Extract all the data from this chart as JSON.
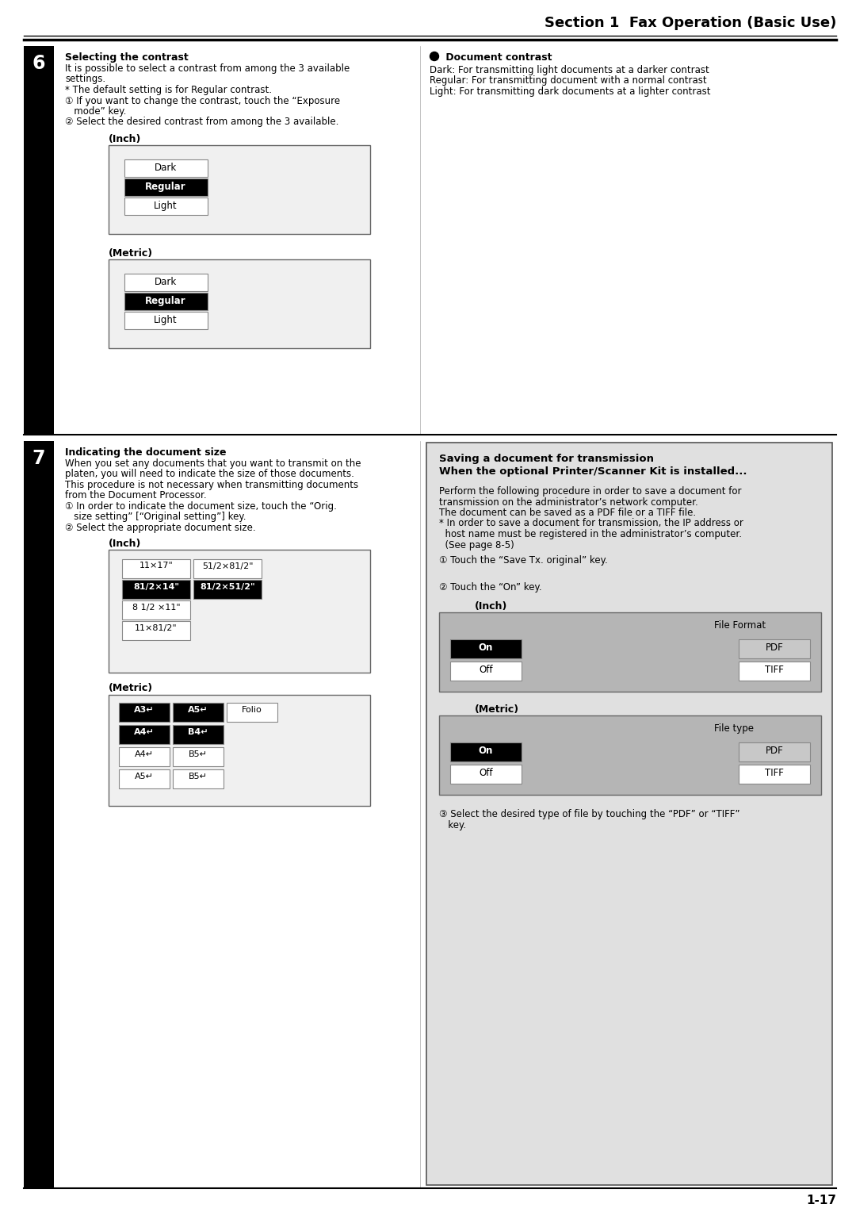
{
  "title": "Section 1  Fax Operation (Basic Use)",
  "page_number": "1-17",
  "background_color": "#ffffff",
  "s6_heading": "Selecting the contrast",
  "s6_body": [
    "It is possible to select a contrast from among the 3 available",
    "settings.",
    "* The default setting is for Regular contrast.",
    "① If you want to change the contrast, touch the “Exposure",
    "   mode” key.",
    "② Select the desired contrast from among the 3 available."
  ],
  "s6_inch_label": "(Inch)",
  "s6_metric_label": "(Metric)",
  "s6_right_heading": "● Document contrast",
  "s6_right_body": [
    "Dark: For transmitting light documents at a darker contrast",
    "Regular: For transmitting document with a normal contrast",
    "Light: For transmitting dark documents at a lighter contrast"
  ],
  "s7_heading": "Indicating the document size",
  "s7_body": [
    "When you set any documents that you want to transmit on the",
    "platen, you will need to indicate the size of those documents.",
    "This procedure is not necessary when transmitting documents",
    "from the Document Processor.",
    "① In order to indicate the document size, touch the “Orig.",
    "   size setting” [“Original setting”] key.",
    "② Select the appropriate document size."
  ],
  "s7_inch_label": "(Inch)",
  "s7_metric_label": "(Metric)",
  "s7_right_heading1": "Saving a document for transmission",
  "s7_right_heading2": "When the optional Printer/Scanner Kit is installed...",
  "s7_right_body": [
    "Perform the following procedure in order to save a document for",
    "transmission on the administrator’s network computer.",
    "The document can be saved as a PDF file or a TIFF file.",
    "* In order to save a document for transmission, the IP address or",
    "  host name must be registered in the administrator’s computer.",
    "  (See page 8-5)"
  ],
  "s7_step1": "① Touch the “Save Tx. original” key.",
  "s7_step2": "② Touch the “On” key.",
  "s7_inch_label2": "(Inch)",
  "s7_metric_label2": "(Metric)",
  "s7_file_format": "File Format",
  "s7_file_type": "File type",
  "s7_footer": [
    "③ Select the desired type of file by touching the “PDF” or “TIFF”",
    "   key."
  ]
}
